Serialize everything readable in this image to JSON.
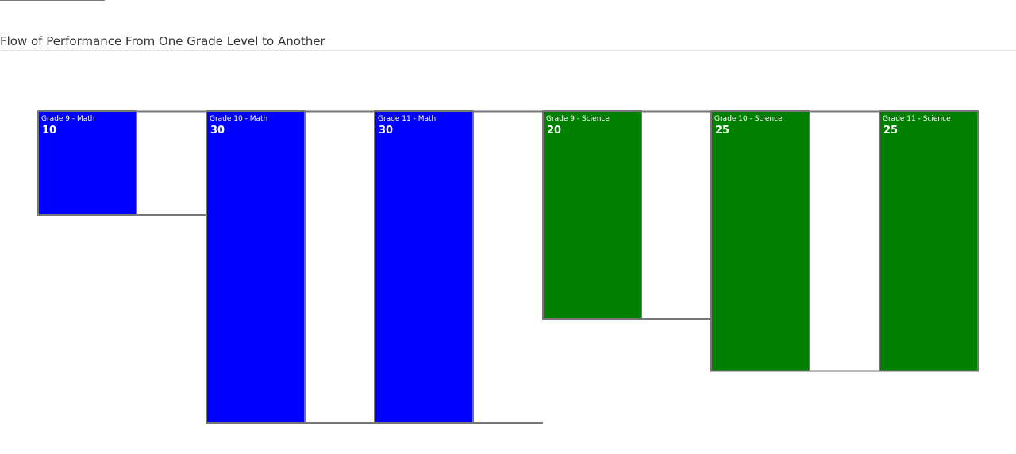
{
  "header": {
    "title": "Flow of Performance From One Grade Level to Another"
  },
  "colors": {
    "math": "#0000ff",
    "science": "#008000",
    "border": "#777777",
    "connector": "#777777",
    "text": "#ffffff"
  },
  "chart_data": {
    "type": "bar",
    "title": "Flow of Performance From One Grade Level to Another",
    "xlabel": "",
    "ylabel": "",
    "grid": false,
    "legend": "none",
    "ylim": [
      0,
      30
    ],
    "categories": [
      "Grade 9 - Math",
      "Grade 10 - Math",
      "Grade 11 - Math",
      "Grade 9 - Science",
      "Grade 10 - Science",
      "Grade 11 - Science"
    ],
    "values": [
      10,
      30,
      30,
      20,
      25,
      25
    ],
    "groups": [
      "Math",
      "Math",
      "Math",
      "Science",
      "Science",
      "Science"
    ],
    "bar_colors": [
      "#0000ff",
      "#0000ff",
      "#0000ff",
      "#008000",
      "#008000",
      "#008000"
    ]
  }
}
